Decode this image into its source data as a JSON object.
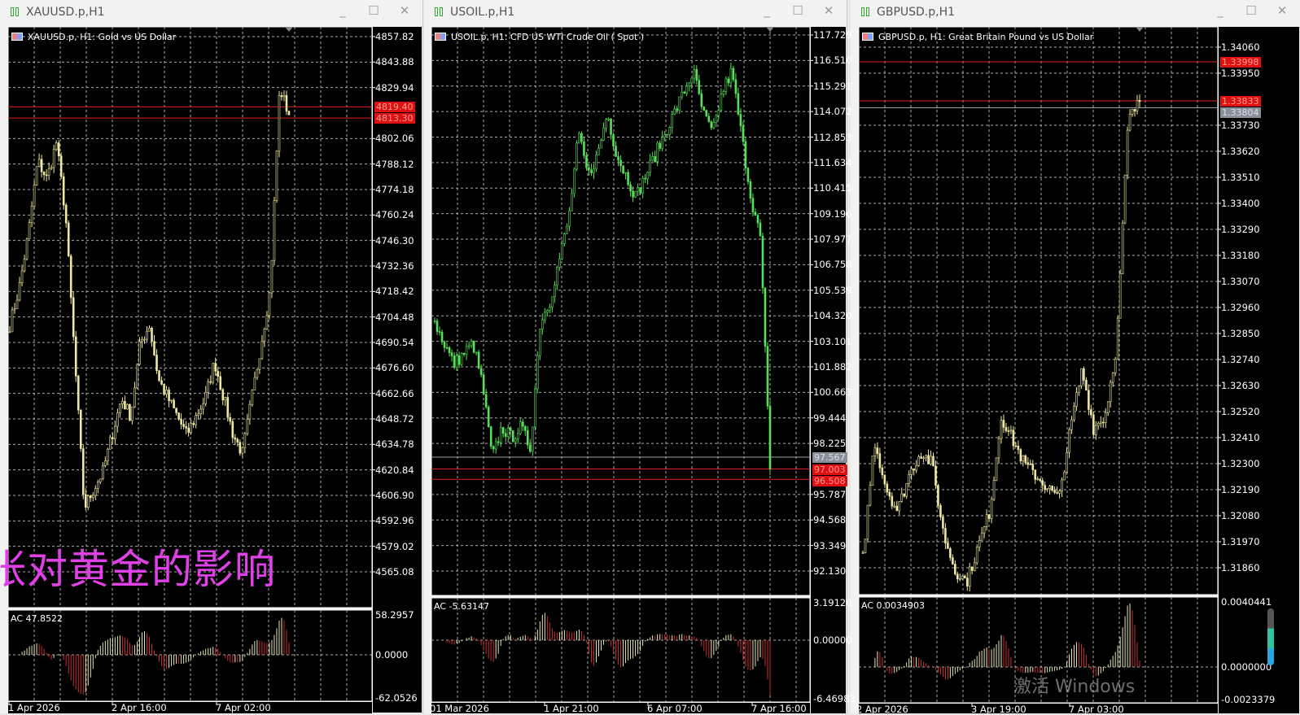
{
  "windows": [
    {
      "title": "XAUUSD.p,H1",
      "chart_label": "XAUUSD.p, H1:  Gold vs US Dollar",
      "candle_color": "#eee8a0",
      "price_labels": [
        "4857.82",
        "4843.88",
        "4829.94",
        "4802.06",
        "4788.12",
        "4774.18",
        "4760.24",
        "4746.30",
        "4732.36",
        "4718.42",
        "4704.48",
        "4690.54",
        "4676.60",
        "4662.66",
        "4648.72",
        "4634.78",
        "4620.84",
        "4606.90",
        "4592.96",
        "4579.02",
        "4565.08"
      ],
      "price_tags": [
        {
          "text": "4819.40",
          "value": 4819.4,
          "kind": "red"
        },
        {
          "text": "4813.30",
          "value": 4813.3,
          "kind": "red"
        }
      ],
      "ac_label": "AC 47.8522",
      "ac_axis": [
        "58.2957",
        "0.0000",
        "-62.0526"
      ],
      "dates": [
        "1 Apr 2026",
        "2 Apr 16:00",
        "7 Apr 02:00"
      ],
      "overlay_text": "张对黄金的影响"
    },
    {
      "title": "USOIL.p,H1",
      "chart_label": "USOIL.p, H1:  CFD US WTI Crude Oil ( Spot )",
      "candle_color": "#58e058",
      "price_labels": [
        "117.729",
        "116.510",
        "115.291",
        "114.072",
        "112.853",
        "111.634",
        "110.415",
        "109.196",
        "107.977",
        "106.758",
        "105.539",
        "104.320",
        "103.101",
        "101.882",
        "100.663",
        "99.444",
        "98.225",
        "95.787",
        "94.568",
        "93.349",
        "92.130"
      ],
      "price_tags": [
        {
          "text": "97.567",
          "value": 97.567,
          "kind": "gray"
        },
        {
          "text": "97.003",
          "value": 97.003,
          "kind": "red"
        },
        {
          "text": "96.508",
          "value": 96.508,
          "kind": "red"
        }
      ],
      "ac_label": "AC -5.63147",
      "ac_axis": [
        "3.19120",
        "0.00000",
        "-6.46983"
      ],
      "dates": [
        "01 Mar 2026",
        "1 Apr 21:00",
        "6 Apr 07:00",
        "7 Apr 16:00"
      ]
    },
    {
      "title": "GBPUSD.p,H1",
      "chart_label": "GBPUSD.p, H1:  Great Britain Pound vs US Dollar",
      "candle_color": "#eee8a0",
      "price_labels": [
        "1.34060",
        "1.33950",
        "1.33730",
        "1.33620",
        "1.33510",
        "1.33400",
        "1.33290",
        "1.33180",
        "1.33070",
        "1.32960",
        "1.32850",
        "1.32740",
        "1.32630",
        "1.32520",
        "1.32410",
        "1.32300",
        "1.32190",
        "1.32080",
        "1.31970",
        "1.31860"
      ],
      "price_tags": [
        {
          "text": "1.33998",
          "value": 1.33998,
          "kind": "red"
        },
        {
          "text": "1.33833",
          "value": 1.33833,
          "kind": "red"
        },
        {
          "text": "1.33804",
          "value": 1.33804,
          "kind": "gray"
        }
      ],
      "ac_label": "AC 0.0034903",
      "ac_axis": [
        "0.0040441",
        "0.0000000",
        "-0.0023379"
      ],
      "dates": [
        "2 Apr 2026",
        "3 Apr 19:00",
        "7 Apr 03:00"
      ]
    }
  ],
  "window_buttons": {
    "minimize": "_",
    "maximize": "☐",
    "close": "✕"
  },
  "os_watermark": "激活 Windows",
  "chart_data": [
    {
      "type": "candlestick",
      "symbol": "XAUUSD.p",
      "timeframe": "H1",
      "ylim": [
        4565.08,
        4857.82
      ],
      "approx_closes": [
        4700,
        4720,
        4750,
        4790,
        4780,
        4800,
        4760,
        4680,
        4600,
        4610,
        4620,
        4640,
        4660,
        4650,
        4690,
        4700,
        4670,
        4660,
        4650,
        4640,
        4650,
        4660,
        4680,
        4660,
        4640,
        4630,
        4660,
        4690,
        4720,
        4830,
        4815
      ]
    },
    {
      "type": "candlestick",
      "symbol": "USOIL.p",
      "timeframe": "H1",
      "ylim": [
        92.13,
        117.729
      ],
      "approx_closes": [
        104,
        103,
        102,
        102.5,
        103,
        101,
        97.5,
        99,
        98.5,
        99,
        98,
        104,
        105,
        107,
        109,
        113,
        111,
        112,
        114,
        112,
        111,
        110,
        111,
        112,
        113,
        114,
        115,
        116,
        114,
        113,
        115,
        116,
        113,
        110,
        108,
        97
      ]
    },
    {
      "type": "candlestick",
      "symbol": "GBPUSD.p",
      "timeframe": "H1",
      "ylim": [
        1.3186,
        1.3406
      ],
      "approx_closes": [
        1.319,
        1.324,
        1.322,
        1.321,
        1.3225,
        1.3235,
        1.323,
        1.32,
        1.3185,
        1.318,
        1.3195,
        1.321,
        1.325,
        1.324,
        1.323,
        1.3225,
        1.322,
        1.3215,
        1.3245,
        1.327,
        1.3245,
        1.325,
        1.328,
        1.3375,
        1.3383
      ]
    }
  ]
}
